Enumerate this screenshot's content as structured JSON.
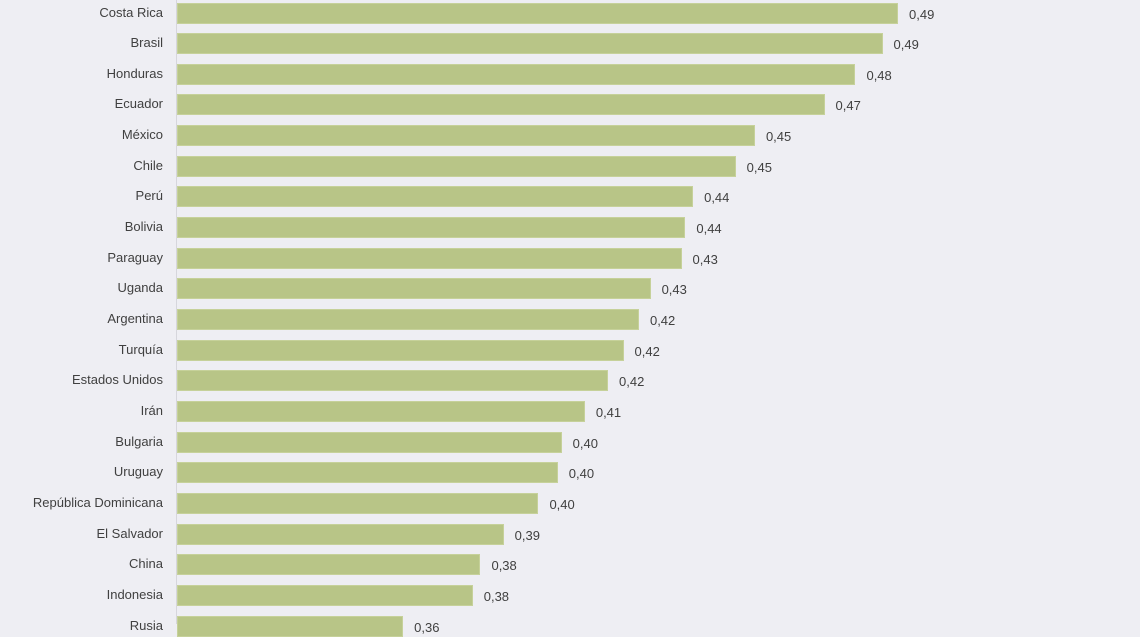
{
  "chart_data": {
    "type": "bar",
    "orientation": "horizontal",
    "categories": [
      "Costa Rica",
      "Brasil",
      "Honduras",
      "Ecuador",
      "México",
      "Chile",
      "Perú",
      "Bolivia",
      "Paraguay",
      "Uganda",
      "Argentina",
      "Turquía",
      "Estados Unidos",
      "Irán",
      "Bulgaria",
      "Uruguay",
      "República Dominicana",
      "El Salvador",
      "China",
      "Indonesia",
      "Rusia"
    ],
    "values": [
      0.49,
      0.486,
      0.479,
      0.471,
      0.453,
      0.448,
      0.437,
      0.435,
      0.434,
      0.426,
      0.423,
      0.419,
      0.415,
      0.409,
      0.403,
      0.402,
      0.397,
      0.388,
      0.382,
      0.38,
      0.362
    ],
    "labels": [
      "0,49",
      "0,49",
      "0,48",
      "0,47",
      "0,45",
      "0,45",
      "0,44",
      "0,44",
      "0,43",
      "0,43",
      "0,42",
      "0,42",
      "0,42",
      "0,41",
      "0,40",
      "0,40",
      "0,40",
      "0,39",
      "0,38",
      "0,38",
      "0,36"
    ],
    "xlim": [
      0.3035,
      0.49
    ],
    "title": "",
    "xlabel": "",
    "ylabel": "",
    "grid": false,
    "colors": {
      "bar": "#b8c587",
      "text": "#404040",
      "background": "#eeeef3"
    }
  }
}
